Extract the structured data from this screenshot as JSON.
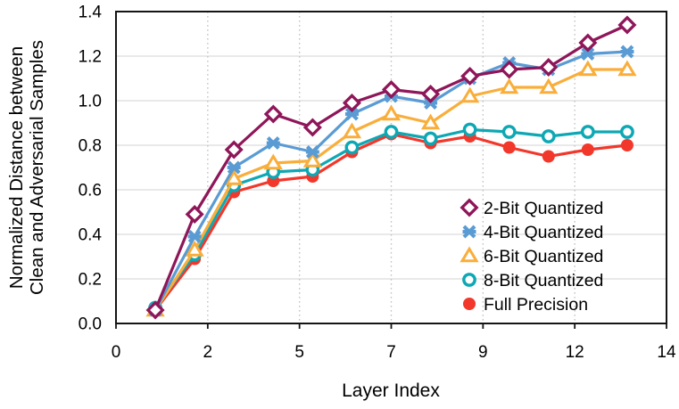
{
  "figure": {
    "xlabel": "Layer Index",
    "ylabel_line1": "Normalized Distance between",
    "ylabel_line2": "Clean and Adversarial Samples"
  },
  "chart_data": {
    "type": "line",
    "title": "",
    "xlabel": "Layer Index",
    "ylabel": "Normalized Distance between Clean and Adversarial Samples",
    "xlim": [
      0,
      14
    ],
    "ylim": [
      0,
      1.4
    ],
    "grid": {
      "horizontal": "solid",
      "vertical": "dotted"
    },
    "legend_position": "inside-right-middle",
    "x_ticks": {
      "positions": [
        0,
        2.3333,
        4.6667,
        7,
        9.3333,
        11.6667,
        14
      ],
      "labels": [
        "0",
        "2",
        "5",
        "7",
        "9",
        "12",
        "14"
      ]
    },
    "y_ticks": {
      "positions": [
        0,
        0.2,
        0.4,
        0.6,
        0.8,
        1.0,
        1.2,
        1.4
      ],
      "labels": [
        "0.0",
        "0.2",
        "0.4",
        "0.6",
        "0.8",
        "1.0",
        "1.2",
        "1.4"
      ]
    },
    "x": [
      1,
      2,
      3,
      4,
      5,
      6,
      7,
      8,
      9,
      10,
      11,
      12,
      13
    ],
    "series": [
      {
        "name": "2-Bit Quantized",
        "marker": "diamond-open",
        "color": "#8E1659",
        "values": [
          0.06,
          0.49,
          0.78,
          0.94,
          0.88,
          0.99,
          1.05,
          1.03,
          1.11,
          1.14,
          1.15,
          1.26,
          1.34
        ]
      },
      {
        "name": "4-Bit Quantized",
        "marker": "x-cross",
        "color": "#5A9BD4",
        "values": [
          0.06,
          0.39,
          0.7,
          0.81,
          0.77,
          0.94,
          1.02,
          0.99,
          1.1,
          1.17,
          1.14,
          1.21,
          1.22
        ]
      },
      {
        "name": "6-Bit Quantized",
        "marker": "triangle-open",
        "color": "#F9AE3B",
        "values": [
          0.06,
          0.33,
          0.65,
          0.72,
          0.73,
          0.86,
          0.94,
          0.9,
          1.02,
          1.06,
          1.06,
          1.14,
          1.14
        ]
      },
      {
        "name": "8-Bit Quantized",
        "marker": "circle-open",
        "color": "#0DA8B4",
        "values": [
          0.07,
          0.31,
          0.62,
          0.68,
          0.69,
          0.79,
          0.86,
          0.83,
          0.87,
          0.86,
          0.84,
          0.86,
          0.86
        ]
      },
      {
        "name": "Full Precision",
        "marker": "circle-filled",
        "color": "#F2372B",
        "values": [
          0.06,
          0.29,
          0.59,
          0.64,
          0.66,
          0.77,
          0.85,
          0.81,
          0.84,
          0.79,
          0.75,
          0.78,
          0.8
        ]
      }
    ],
    "style": {
      "grid_h_color": "#DCDCDC",
      "grid_v_color": "#C4C4C4",
      "border_color": "#141414",
      "text_color": "#000000"
    }
  }
}
